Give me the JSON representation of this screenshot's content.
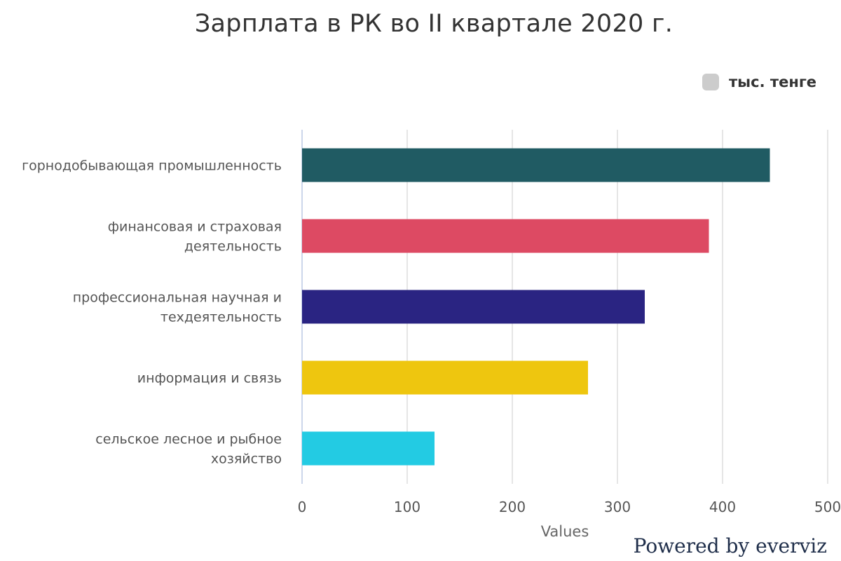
{
  "chart_data": {
    "type": "bar",
    "orientation": "horizontal",
    "title": "Зарплата в РК во II квартале 2020 г.",
    "categories": [
      [
        "горнодобывающая промышленность"
      ],
      [
        "финансовая и страховая",
        "деятельность"
      ],
      [
        "профессиональная научная и",
        "техдеятельность"
      ],
      [
        "информация и связь"
      ],
      [
        "сельское лесное и рыбное",
        "хозяйство"
      ]
    ],
    "series": [
      {
        "name": "тыс. тенге",
        "values": [
          445,
          387,
          326,
          272,
          126
        ],
        "colors": [
          "#205b63",
          "#dd4a63",
          "#2a2482",
          "#eec60f",
          "#23cbe3"
        ]
      }
    ],
    "legend_color": "#cccccc",
    "xlabel": "Values",
    "ylabel": "",
    "xlim": [
      0,
      500
    ],
    "xticks": [
      0,
      100,
      200,
      300,
      400,
      500
    ],
    "grid": true,
    "legend_position": "top-right"
  },
  "credits": "Powered by everviz"
}
